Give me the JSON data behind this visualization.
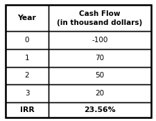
{
  "col1_header": "Year",
  "col2_header": "Cash Flow\n(in thousand dollars)",
  "rows": [
    [
      "0",
      "-100"
    ],
    [
      "1",
      "70"
    ],
    [
      "2",
      "50"
    ],
    [
      "3",
      "20"
    ]
  ],
  "footer_col1": "IRR",
  "footer_col2": "23.56%",
  "bg_color": "#ffffff",
  "border_color": "#000000",
  "text_color": "#000000",
  "figsize": [
    2.25,
    1.75
  ],
  "dpi": 100
}
